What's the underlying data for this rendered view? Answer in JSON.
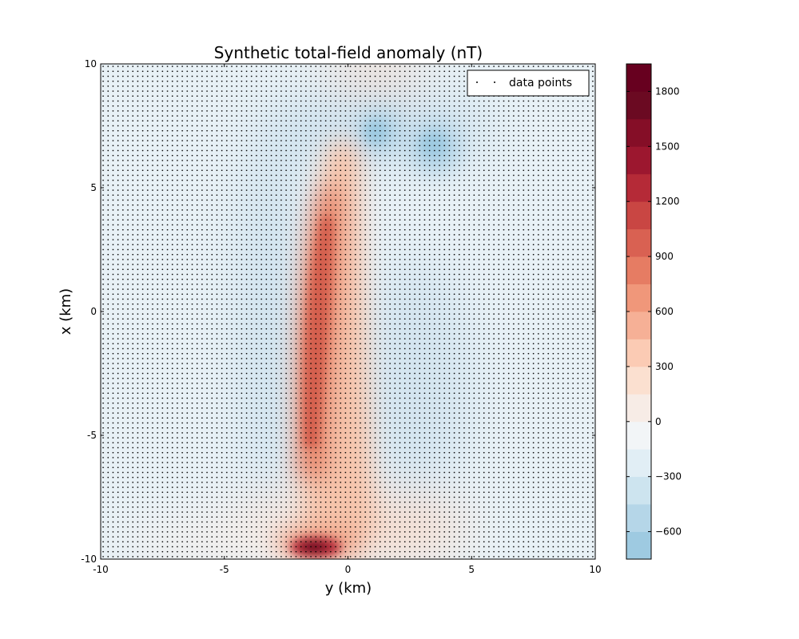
{
  "chart_data": {
    "type": "heatmap",
    "title": "Synthetic total-field anomaly (nT)",
    "xlabel": "y (km)",
    "ylabel": "x (km)",
    "xlim": [
      -10,
      10
    ],
    "ylim": [
      -10,
      10
    ],
    "x_ticks": [
      "-10",
      "-5",
      "0",
      "5",
      "10"
    ],
    "y_ticks": [
      "10",
      "5",
      "0",
      "-5",
      "-10"
    ],
    "legend": {
      "entries": [
        "data points"
      ],
      "placement": "top-right"
    },
    "colorbar": {
      "min": -750,
      "max": 1950,
      "step": 150,
      "tick_labels": [
        "1800",
        "1500",
        "1200",
        "900",
        "600",
        "300",
        "0",
        "−300",
        "−600"
      ],
      "tick_values": [
        1800,
        1500,
        1200,
        900,
        600,
        300,
        0,
        -300,
        -600
      ],
      "colors": [
        "#9ecae1",
        "#b5d6e8",
        "#cde4ef",
        "#e1eef5",
        "#f2f5f7",
        "#f7ece6",
        "#fbe0d0",
        "#fbcbb4",
        "#f6b096",
        "#f0977a",
        "#e67c63",
        "#d96152",
        "#c94643",
        "#b52a37",
        "#9c172f",
        "#850e27",
        "#6b0a22",
        "#67001f"
      ]
    },
    "data_points": {
      "grid_spacing_km": 0.2,
      "marker": "black dot"
    },
    "features": [
      {
        "name": "positive anomaly ridge",
        "y_km": [
          -1.5,
          0
        ],
        "x_km": [
          -9,
          6
        ],
        "peak_nT": 1300
      },
      {
        "name": "positive peak",
        "y_km": -1.2,
        "x_km": -9.5,
        "peak_nT": 1950
      },
      {
        "name": "negative anomaly",
        "y_km": 1.2,
        "x_km": 7.2,
        "low_nT": -700
      },
      {
        "name": "negative anomaly",
        "y_km": 3.5,
        "x_km": 6.7,
        "low_nT": -700
      }
    ]
  }
}
